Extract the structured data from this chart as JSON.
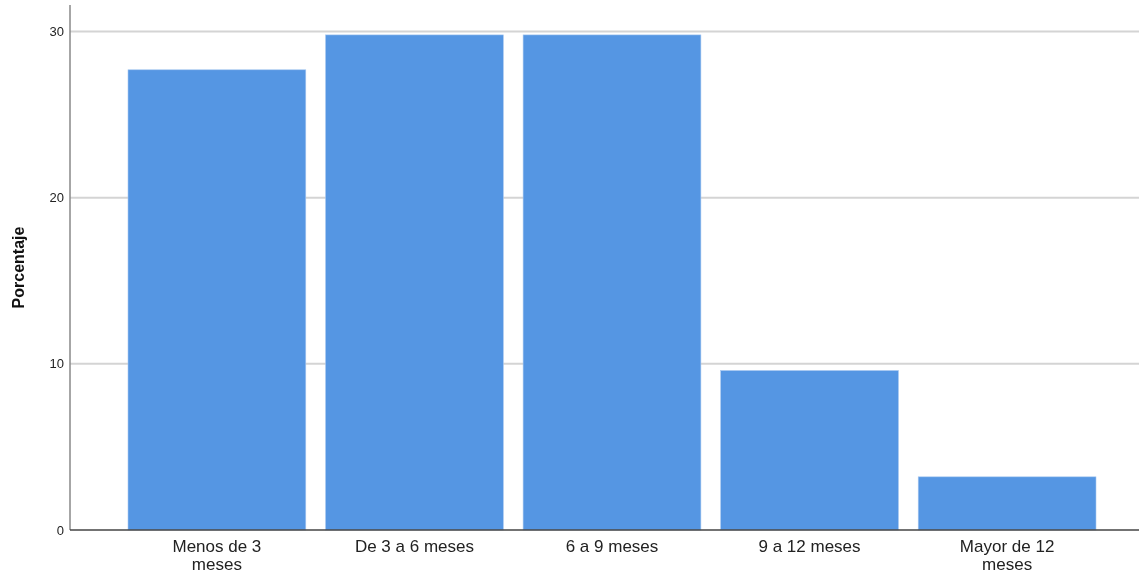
{
  "chart_data": {
    "type": "bar",
    "ylabel": "Porcentaje",
    "categories": [
      "Menos de 3 meses",
      "De 3 a 6 meses",
      "6 a 9 meses",
      "9 a 12 meses",
      "Mayor de 12 meses"
    ],
    "values": [
      27.7,
      29.8,
      29.8,
      9.6,
      3.2
    ],
    "color": "#5596e3",
    "ylim": [
      0,
      31.6
    ],
    "yticks": [
      0,
      10,
      20,
      30
    ],
    "grid": "y"
  }
}
